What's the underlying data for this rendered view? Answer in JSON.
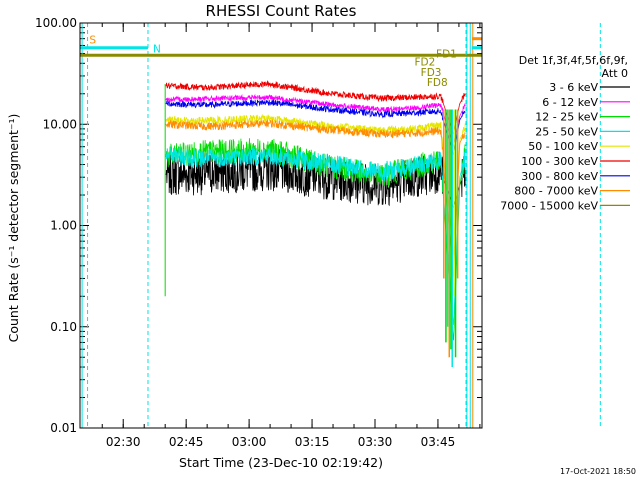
{
  "chart_data": {
    "type": "line",
    "title": "RHESSI Count Rates",
    "xlabel": "Start Time (23-Dec-10 02:19:42)",
    "ylabel": "Count Rate (s⁻¹ detector segment⁻¹)",
    "yscale": "log",
    "ylim": [
      0.01,
      100
    ],
    "xlim": [
      "02:19:42",
      "03:55:30"
    ],
    "xticks": [
      "02:30",
      "02:45",
      "03:00",
      "03:15",
      "03:30",
      "03:45"
    ],
    "yticks": [
      "0.01",
      "0.10",
      "1.00",
      "10.00",
      "100.00"
    ],
    "legend_title": "Det 1f,3f,4f,5f,6f,9f,",
    "legend_subtitle": "Att 0",
    "legend_position": "right",
    "x_unit": "minutes since 02:19:42",
    "series": [
      {
        "name": "3 - 6 keV",
        "color": "#000000",
        "x": [
          20.3,
          30,
          45,
          60,
          72,
          80,
          86,
          89,
          90.5,
          91.8
        ],
        "y": [
          3.2,
          3.3,
          3.6,
          2.9,
          2.5,
          3.0,
          3.5,
          1.5,
          2.5,
          3.4
        ]
      },
      {
        "name": "6 - 12 keV",
        "color": "#ff00ff",
        "x": [
          20.3,
          30,
          45,
          60,
          72,
          80,
          86,
          89,
          90.5,
          91.8
        ],
        "y": [
          17.5,
          17.8,
          18.5,
          15.5,
          14.0,
          14.5,
          15.5,
          6.0,
          12.0,
          15.8
        ]
      },
      {
        "name": "12 - 25 keV",
        "color": "#00dd00",
        "x": [
          20.3,
          30,
          45,
          60,
          72,
          80,
          86,
          89,
          90.5,
          91.8
        ],
        "y": [
          4.8,
          5.3,
          5.6,
          3.8,
          3.1,
          3.8,
          4.5,
          0.07,
          2.5,
          5.0
        ]
      },
      {
        "name": "25 - 50 keV",
        "color": "#00e5e5",
        "x": [
          20.3,
          30,
          45,
          60,
          72,
          80,
          86,
          89,
          90.5,
          91.8
        ],
        "y": [
          5.0,
          4.6,
          4.9,
          4.0,
          3.4,
          3.9,
          4.4,
          0.1,
          3.0,
          4.8
        ]
      },
      {
        "name": "50 - 100 keV",
        "color": "#e5e500",
        "x": [
          20.3,
          30,
          45,
          60,
          72,
          80,
          86,
          89,
          90.5,
          91.8
        ],
        "y": [
          11.0,
          10.8,
          11.5,
          9.5,
          8.8,
          9.0,
          9.8,
          0.5,
          7.0,
          9.5
        ]
      },
      {
        "name": "100 - 300 keV",
        "color": "#ee0000",
        "x": [
          20.3,
          30,
          45,
          60,
          72,
          80,
          86,
          89,
          90.5,
          91.8
        ],
        "y": [
          24,
          23,
          25,
          20,
          18,
          18.5,
          19,
          8,
          16,
          20
        ]
      },
      {
        "name": "300 - 800 keV",
        "color": "#0000ee",
        "x": [
          20.3,
          30,
          45,
          60,
          72,
          80,
          86,
          89,
          90.5,
          91.8
        ],
        "y": [
          16,
          15.5,
          16.5,
          14,
          12.5,
          13,
          13.5,
          5,
          11,
          13.8
        ]
      },
      {
        "name": "800 - 7000 keV",
        "color": "#ff8c00",
        "x": [
          20.3,
          30,
          45,
          60,
          72,
          80,
          86,
          89,
          90.5,
          91.8
        ],
        "y": [
          10.0,
          9.5,
          10.2,
          8.8,
          8.0,
          8.2,
          8.6,
          0.3,
          6.5,
          8.4
        ]
      },
      {
        "name": "7000 - 15000 keV",
        "color": "#8b8b00",
        "x": [
          0,
          25,
          50,
          75,
          95.8
        ],
        "y": [
          48,
          48,
          48,
          48,
          48
        ]
      }
    ],
    "annotations": [
      {
        "text": "S",
        "color": "#ff8c00"
      },
      {
        "text": "N",
        "color": "#00e5e5"
      },
      {
        "text": "FD1",
        "color": "#8b8b00"
      },
      {
        "text": "FD2",
        "color": "#8b8b00"
      },
      {
        "text": "FD3",
        "color": "#8b8b00"
      },
      {
        "text": "FD8",
        "color": "#8b8b00"
      }
    ],
    "footer": "17-Oct-2021 18:50"
  }
}
